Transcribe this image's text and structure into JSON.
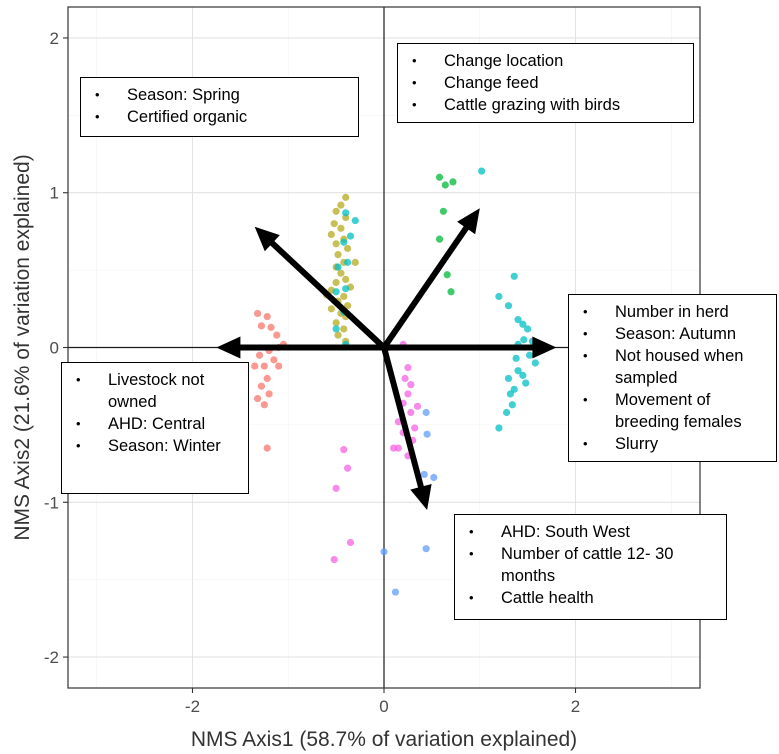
{
  "chart_data": {
    "type": "scatter",
    "xlabel": "NMS Axis1 (58.7% of variation explained)",
    "ylabel": "NMS Axis2 (21.6% of variation explained)",
    "xlim": [
      -3.3,
      3.3
    ],
    "ylim": [
      -2.2,
      2.2
    ],
    "xticks": [
      -2,
      0,
      2
    ],
    "yticks": [
      -2,
      -1,
      0,
      1,
      2
    ],
    "xtick_labels": [
      "-2",
      "0",
      "2"
    ],
    "ytick_labels": [
      "-2",
      "-1",
      "0",
      "1",
      "2"
    ],
    "grid": true,
    "series": [
      {
        "color": "#F8766D",
        "points": [
          [
            -1.32,
            0.22
          ],
          [
            -1.22,
            0.2
          ],
          [
            -1.28,
            0.14
          ],
          [
            -1.18,
            0.13
          ],
          [
            -1.12,
            0.08
          ],
          [
            -1.05,
            0.02
          ],
          [
            -1.1,
            0.0
          ],
          [
            -1.2,
            -0.02
          ],
          [
            -1.3,
            -0.05
          ],
          [
            -1.15,
            -0.08
          ],
          [
            -1.25,
            -0.12
          ],
          [
            -1.1,
            -0.12
          ],
          [
            -1.35,
            -0.12
          ],
          [
            -1.22,
            -0.2
          ],
          [
            -1.28,
            -0.25
          ],
          [
            -1.2,
            -0.3
          ],
          [
            -1.32,
            -0.33
          ],
          [
            -1.25,
            -0.37
          ],
          [
            -1.22,
            -0.65
          ]
        ]
      },
      {
        "color": "#B5AB1F",
        "points": [
          [
            -0.4,
            0.97
          ],
          [
            -0.45,
            0.92
          ],
          [
            -0.5,
            0.88
          ],
          [
            -0.4,
            0.84
          ],
          [
            -0.52,
            0.8
          ],
          [
            -0.45,
            0.77
          ],
          [
            -0.55,
            0.73
          ],
          [
            -0.42,
            0.7
          ],
          [
            -0.5,
            0.67
          ],
          [
            -0.38,
            0.64
          ],
          [
            -0.48,
            0.6
          ],
          [
            -0.42,
            0.55
          ],
          [
            -0.5,
            0.52
          ],
          [
            -0.45,
            0.48
          ],
          [
            -0.4,
            0.44
          ],
          [
            -0.5,
            0.42
          ],
          [
            -0.35,
            0.39
          ],
          [
            -0.55,
            0.37
          ],
          [
            -0.6,
            0.34
          ],
          [
            -0.42,
            0.33
          ],
          [
            -0.48,
            0.3
          ],
          [
            -0.38,
            0.27
          ],
          [
            -0.55,
            0.25
          ],
          [
            -0.45,
            0.22
          ],
          [
            -0.4,
            0.2
          ],
          [
            -0.5,
            0.16
          ],
          [
            -0.42,
            0.12
          ],
          [
            -0.48,
            0.08
          ],
          [
            -0.4,
            0.04
          ],
          [
            -0.3,
            0.55
          ]
        ]
      },
      {
        "color": "#00BA38",
        "points": [
          [
            0.58,
            1.1
          ],
          [
            0.64,
            1.05
          ],
          [
            0.72,
            1.07
          ],
          [
            0.62,
            0.88
          ],
          [
            0.58,
            0.7
          ],
          [
            0.66,
            0.47
          ],
          [
            0.7,
            0.36
          ]
        ]
      },
      {
        "color": "#00BFC4",
        "points": [
          [
            -0.4,
            0.87
          ],
          [
            -0.3,
            0.82
          ],
          [
            -0.35,
            0.72
          ],
          [
            -0.42,
            0.68
          ],
          [
            -0.38,
            0.55
          ],
          [
            -0.48,
            0.52
          ],
          [
            -0.4,
            0.38
          ],
          [
            -0.5,
            0.36
          ],
          [
            -0.42,
            0.23
          ],
          [
            -0.5,
            0.12
          ],
          [
            -0.4,
            0.02
          ],
          [
            1.02,
            1.14
          ],
          [
            1.2,
            0.33
          ],
          [
            1.36,
            0.46
          ],
          [
            1.3,
            0.27
          ],
          [
            1.4,
            0.18
          ],
          [
            1.45,
            0.15
          ],
          [
            1.5,
            0.12
          ],
          [
            1.46,
            0.05
          ],
          [
            1.55,
            0.04
          ],
          [
            1.4,
            0.02
          ],
          [
            1.52,
            -0.05
          ],
          [
            1.38,
            -0.07
          ],
          [
            1.58,
            -0.1
          ],
          [
            1.4,
            -0.15
          ],
          [
            1.45,
            -0.18
          ],
          [
            1.3,
            -0.2
          ],
          [
            1.48,
            -0.23
          ],
          [
            1.36,
            -0.27
          ],
          [
            1.32,
            -0.3
          ],
          [
            1.34,
            -0.37
          ],
          [
            1.28,
            -0.42
          ],
          [
            1.2,
            -0.52
          ]
        ]
      },
      {
        "color": "#619CFF",
        "points": [
          [
            0.44,
            -0.42
          ],
          [
            0.45,
            -0.56
          ],
          [
            0.42,
            -0.82
          ],
          [
            0.52,
            -0.84
          ],
          [
            0.0,
            -1.32
          ],
          [
            0.44,
            -1.3
          ],
          [
            0.12,
            -1.58
          ]
        ]
      },
      {
        "color": "#F564E3",
        "points": [
          [
            0.05,
            0.0
          ],
          [
            0.2,
            0.02
          ],
          [
            0.25,
            -0.13
          ],
          [
            0.22,
            -0.2
          ],
          [
            0.28,
            -0.24
          ],
          [
            0.25,
            -0.3
          ],
          [
            0.2,
            -0.36
          ],
          [
            0.35,
            -0.38
          ],
          [
            0.28,
            -0.42
          ],
          [
            0.15,
            -0.48
          ],
          [
            0.32,
            -0.52
          ],
          [
            0.2,
            -0.55
          ],
          [
            0.3,
            -0.6
          ],
          [
            0.15,
            -0.65
          ],
          [
            0.1,
            -0.65
          ],
          [
            0.25,
            -0.7
          ],
          [
            -0.42,
            -0.66
          ],
          [
            -0.38,
            -0.78
          ],
          [
            -0.5,
            -0.91
          ],
          [
            -0.35,
            -1.26
          ],
          [
            -0.52,
            -1.37
          ]
        ]
      }
    ],
    "vectors": [
      {
        "to": [
          -1.35,
          0.78
        ]
      },
      {
        "to": [
          -1.75,
          0.0
        ]
      },
      {
        "to": [
          1.0,
          0.9
        ]
      },
      {
        "to": [
          1.8,
          0.0
        ]
      },
      {
        "to": [
          0.45,
          -1.05
        ]
      }
    ],
    "annotations": [
      {
        "id": "spring",
        "items": [
          "Season: Spring",
          "Certified organic"
        ]
      },
      {
        "id": "location",
        "items": [
          "Change location",
          "Change feed",
          "Cattle grazing with birds"
        ]
      },
      {
        "id": "herd",
        "items": [
          "Number in herd",
          "Season: Autumn",
          "Not housed when sampled",
          "Movement of breeding females",
          "Slurry"
        ]
      },
      {
        "id": "livestock",
        "items": [
          "Livestock not owned",
          "AHD: Central",
          "Season: Winter"
        ]
      },
      {
        "id": "southwest",
        "items": [
          "AHD: South West",
          "Number of cattle 12- 30 months",
          "Cattle health"
        ]
      }
    ]
  }
}
